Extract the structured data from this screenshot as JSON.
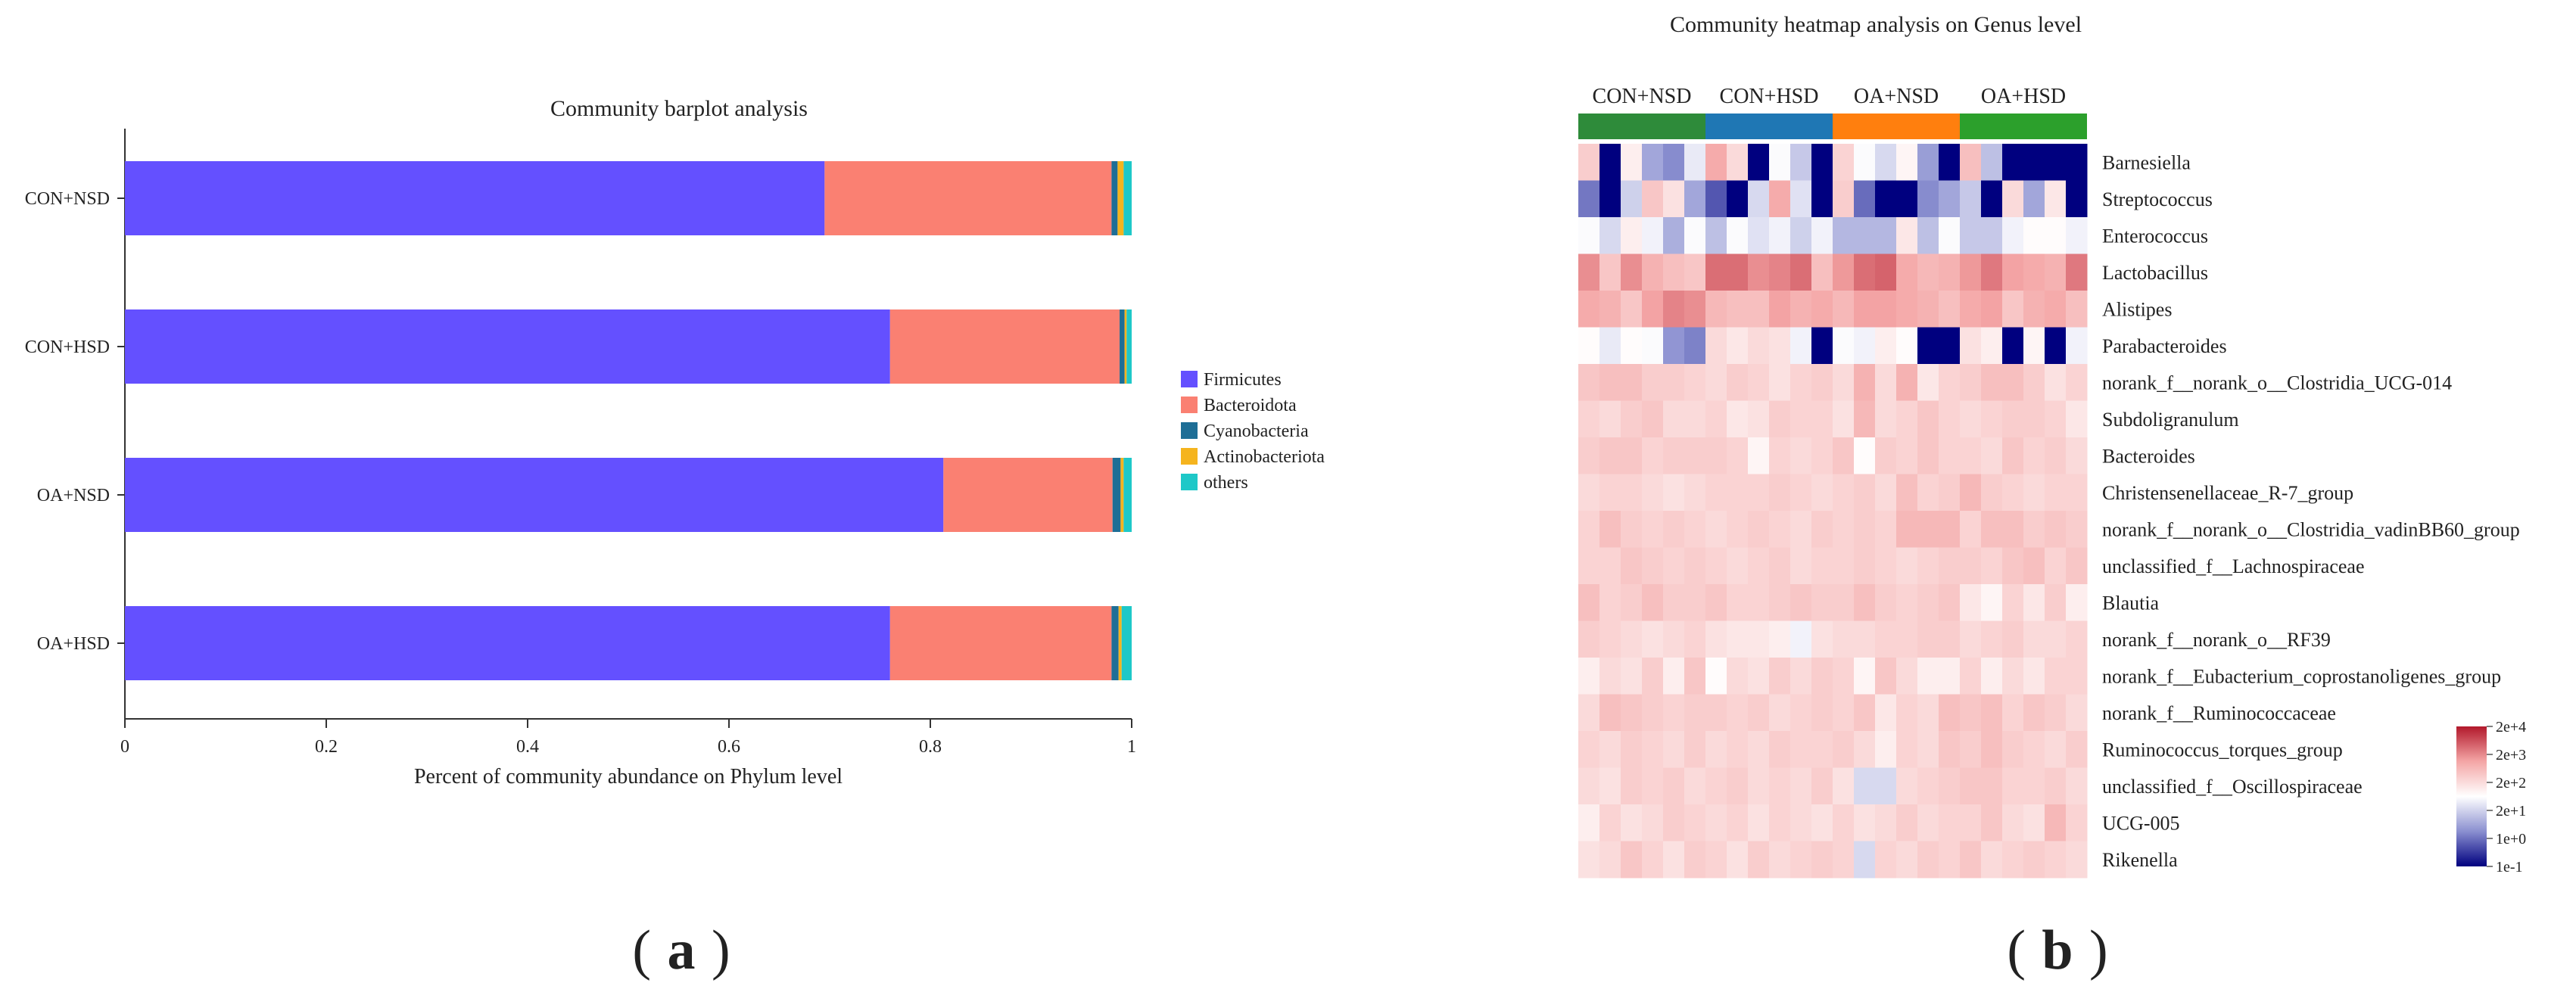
{
  "panels": {
    "a": {
      "open": "(",
      "letter": "a",
      "close": ")"
    },
    "b": {
      "open": "(",
      "letter": "b",
      "close": ")"
    }
  },
  "chart_data": [
    {
      "type": "bar",
      "orientation": "horizontal",
      "stacked": true,
      "title": "Community barplot analysis",
      "xlabel": "Percent of community abundance on Phylum level",
      "ylabel": "",
      "xlim": [
        0,
        1
      ],
      "xticks": [
        "0",
        "0.2",
        "0.4",
        "0.6",
        "0.8",
        "1"
      ],
      "categories": [
        "CON+NSD",
        "CON+HSD",
        "OA+NSD",
        "OA+HSD"
      ],
      "legend_position": "right",
      "series": [
        {
          "name": "Firmicutes",
          "color": "#6450ff",
          "values": [
            0.695,
            0.76,
            0.813,
            0.76
          ]
        },
        {
          "name": "Bacteroidota",
          "color": "#fa8072",
          "values": [
            0.285,
            0.228,
            0.168,
            0.22
          ]
        },
        {
          "name": "Cyanobacteria",
          "color": "#1e6e96",
          "values": [
            0.006,
            0.005,
            0.008,
            0.007
          ]
        },
        {
          "name": "Actinobacteriota",
          "color": "#f5b41e",
          "values": [
            0.006,
            0.002,
            0.003,
            0.003
          ]
        },
        {
          "name": "others",
          "color": "#1ec8c8",
          "values": [
            0.008,
            0.005,
            0.008,
            0.01
          ]
        }
      ]
    },
    {
      "type": "heatmap",
      "title": "Community heatmap analysis on Genus level",
      "groups": [
        {
          "name": "CON+NSD",
          "color": "#2e8b3a",
          "samples": 6
        },
        {
          "name": "CON+HSD",
          "color": "#1f77b4",
          "samples": 6
        },
        {
          "name": "OA+NSD",
          "color": "#ff7f0e",
          "samples": 6
        },
        {
          "name": "OA+HSD",
          "color": "#2ca02c",
          "samples": 6
        }
      ],
      "rows": [
        {
          "name": "Barnesiella",
          "values": [
            2.4,
            -1,
            1.9,
            0.6,
            0.3,
            1.4,
            2.9,
            2.2,
            -1,
            1.6,
            1.0,
            -1,
            2.3,
            1.6,
            1.2,
            1.8,
            0.5,
            -1,
            2.6,
            0.9,
            -1,
            -1,
            -1,
            -1
          ]
        },
        {
          "name": "Streptococcus",
          "values": [
            0.1,
            -1,
            1.1,
            2.5,
            2.1,
            0.6,
            -0.2,
            -1,
            1.2,
            2.9,
            1.3,
            -1,
            2.4,
            0.0,
            -1,
            -1,
            0.3,
            0.6,
            1.0,
            -1,
            2.2,
            0.6,
            2.0,
            -1
          ]
        },
        {
          "name": "Enterococcus",
          "values": [
            1.6,
            1.2,
            1.9,
            1.5,
            0.7,
            1.6,
            0.9,
            1.6,
            1.3,
            1.5,
            1.1,
            1.5,
            0.8,
            0.8,
            0.8,
            2.0,
            0.9,
            1.6,
            1.0,
            1.0,
            1.5,
            1.7,
            1.7,
            1.5
          ]
        },
        {
          "name": "Lactobacillus",
          "values": [
            3.2,
            2.5,
            3.2,
            2.8,
            2.6,
            2.5,
            3.5,
            3.5,
            3.2,
            3.3,
            3.5,
            2.6,
            3.1,
            3.5,
            3.6,
            2.9,
            2.7,
            2.8,
            3.1,
            3.4,
            3.0,
            2.9,
            2.8,
            3.4
          ]
        },
        {
          "name": "Alistipes",
          "values": [
            2.9,
            2.8,
            2.5,
            3.0,
            3.3,
            3.2,
            2.7,
            2.6,
            2.6,
            3.0,
            2.8,
            2.9,
            2.7,
            3.0,
            3.0,
            2.9,
            2.8,
            2.6,
            2.9,
            3.0,
            2.5,
            2.8,
            2.9,
            2.6
          ]
        },
        {
          "name": "Parabacteroides",
          "values": [
            1.7,
            1.4,
            1.7,
            1.6,
            0.4,
            0.2,
            2.2,
            2.0,
            2.2,
            2.1,
            1.5,
            -1,
            1.6,
            1.5,
            1.9,
            1.7,
            -1,
            -1,
            2.1,
            1.9,
            -1,
            1.8,
            -1,
            1.5
          ]
        },
        {
          "name": "norank_f__norank_o__Clostridia_UCG-014",
          "values": [
            2.5,
            2.6,
            2.6,
            2.4,
            2.4,
            2.3,
            2.2,
            2.4,
            2.3,
            2.1,
            2.3,
            2.4,
            2.2,
            2.8,
            2.2,
            2.8,
            2.0,
            2.3,
            2.4,
            2.6,
            2.6,
            2.4,
            2.1,
            2.3
          ]
        },
        {
          "name": "Subdoligranulum",
          "values": [
            2.3,
            2.2,
            2.4,
            2.5,
            2.2,
            2.2,
            2.3,
            2.0,
            2.1,
            2.4,
            2.3,
            2.3,
            2.1,
            2.7,
            2.2,
            2.3,
            2.5,
            2.3,
            2.2,
            2.3,
            2.4,
            2.4,
            2.3,
            2.0
          ]
        },
        {
          "name": "Bacteroides",
          "values": [
            2.4,
            2.5,
            2.5,
            2.3,
            2.4,
            2.4,
            2.4,
            2.3,
            1.8,
            2.3,
            2.2,
            2.3,
            2.5,
            1.7,
            2.4,
            2.3,
            2.5,
            2.3,
            2.3,
            2.2,
            2.5,
            2.3,
            2.4,
            2.2
          ]
        },
        {
          "name": "Christensenellaceae_R-7_group",
          "values": [
            2.2,
            2.3,
            2.3,
            2.2,
            2.1,
            2.2,
            2.3,
            2.3,
            2.3,
            2.4,
            2.3,
            2.2,
            2.3,
            2.4,
            2.2,
            2.6,
            2.3,
            2.4,
            2.7,
            2.4,
            2.3,
            2.2,
            2.3,
            2.3
          ]
        },
        {
          "name": "norank_f__norank_o__Clostridia_vadinBB60_group",
          "values": [
            2.3,
            2.6,
            2.4,
            2.3,
            2.4,
            2.3,
            2.2,
            2.3,
            2.4,
            2.3,
            2.2,
            2.4,
            2.3,
            2.4,
            2.3,
            2.7,
            2.7,
            2.7,
            2.3,
            2.6,
            2.6,
            2.4,
            2.5,
            2.4
          ]
        },
        {
          "name": "unclassified_f__Lachnospiraceae",
          "values": [
            2.3,
            2.3,
            2.5,
            2.4,
            2.3,
            2.4,
            2.3,
            2.2,
            2.3,
            2.4,
            2.2,
            2.3,
            2.3,
            2.4,
            2.3,
            2.2,
            2.3,
            2.4,
            2.4,
            2.3,
            2.5,
            2.6,
            2.3,
            2.5
          ]
        },
        {
          "name": "Blautia",
          "values": [
            2.6,
            2.3,
            2.4,
            2.6,
            2.4,
            2.4,
            2.5,
            2.3,
            2.3,
            2.4,
            2.5,
            2.4,
            2.4,
            2.6,
            2.4,
            2.3,
            2.4,
            2.5,
            2.0,
            1.8,
            2.3,
            2.0,
            2.4,
            1.9
          ]
        },
        {
          "name": "norank_f__norank_o__RF39",
          "values": [
            2.4,
            2.3,
            2.2,
            2.1,
            2.2,
            2.3,
            2.1,
            2.0,
            2.0,
            1.9,
            1.5,
            2.1,
            2.2,
            2.2,
            2.3,
            2.3,
            2.4,
            2.4,
            2.2,
            2.3,
            2.4,
            2.2,
            2.2,
            2.3
          ]
        },
        {
          "name": "norank_f__Eubacterium_coprostanoligenes_group",
          "values": [
            1.9,
            2.2,
            2.1,
            2.4,
            1.9,
            2.5,
            1.7,
            2.2,
            2.1,
            2.4,
            2.2,
            2.4,
            2.3,
            1.8,
            2.5,
            2.2,
            1.9,
            1.9,
            2.3,
            1.9,
            2.2,
            2.0,
            2.3,
            2.3
          ]
        },
        {
          "name": "norank_f__Ruminococcaceae",
          "values": [
            2.2,
            2.6,
            2.5,
            2.4,
            2.3,
            2.4,
            2.4,
            2.3,
            2.4,
            2.2,
            2.3,
            2.4,
            2.3,
            2.5,
            2.0,
            2.3,
            2.2,
            2.6,
            2.5,
            2.6,
            2.3,
            2.5,
            2.4,
            2.2
          ]
        },
        {
          "name": "Ruminococcus_torques_group",
          "values": [
            2.3,
            2.2,
            2.4,
            2.3,
            2.2,
            2.4,
            2.2,
            2.3,
            2.2,
            2.4,
            2.3,
            2.3,
            2.4,
            2.2,
            1.9,
            2.3,
            2.2,
            2.5,
            2.4,
            2.6,
            2.4,
            2.3,
            2.2,
            2.4
          ]
        },
        {
          "name": "unclassified_f__Oscillospiraceae",
          "values": [
            2.2,
            2.1,
            2.4,
            2.3,
            2.4,
            2.2,
            2.3,
            2.4,
            2.2,
            2.3,
            2.2,
            2.4,
            2.1,
            1.2,
            1.2,
            2.2,
            2.3,
            2.4,
            2.5,
            2.5,
            2.3,
            2.3,
            2.4,
            2.2
          ]
        },
        {
          "name": "UCG-005",
          "values": [
            1.9,
            2.3,
            2.1,
            2.2,
            2.4,
            2.3,
            2.2,
            2.3,
            2.1,
            2.3,
            2.2,
            2.1,
            2.3,
            2.1,
            2.2,
            2.4,
            2.2,
            2.3,
            2.3,
            2.5,
            2.2,
            2.1,
            2.7,
            2.3
          ]
        },
        {
          "name": "Rikenella",
          "values": [
            2.1,
            2.2,
            2.5,
            2.3,
            2.1,
            2.4,
            2.3,
            2.1,
            2.4,
            2.2,
            2.3,
            2.4,
            2.3,
            1.2,
            2.3,
            2.2,
            2.4,
            2.3,
            2.5,
            2.2,
            2.3,
            2.4,
            2.3,
            2.2
          ]
        }
      ],
      "color_scale": {
        "labels": [
          "2e+4",
          "2e+3",
          "2e+2",
          "2e+1",
          "1e+0",
          "1e-1"
        ],
        "colors": [
          "#b2182b",
          "#f4a6a6",
          "#ffffff",
          "#8a8fd0",
          "#00007f"
        ]
      }
    }
  ]
}
